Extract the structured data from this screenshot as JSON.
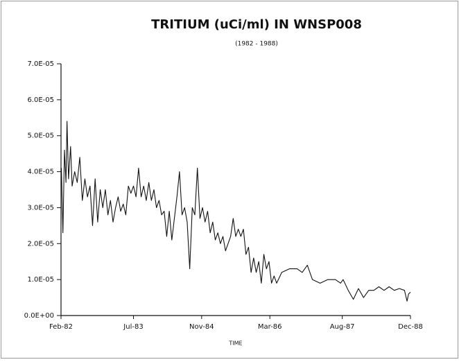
{
  "chart_data": {
    "type": "line",
    "title": "TRITIUM (uCi/ml) IN WNSP008",
    "subtitle": "(1982 - 1988)",
    "x_label": "TIME",
    "color": "#111111",
    "xlim": [
      1982.083,
      1988.917
    ],
    "xticks": [
      {
        "value": 1982.083,
        "label": "Feb-82"
      },
      {
        "value": 1983.5,
        "label": "Jul-83"
      },
      {
        "value": 1984.833,
        "label": "Nov-84"
      },
      {
        "value": 1986.167,
        "label": "Mar-86"
      },
      {
        "value": 1987.583,
        "label": "Aug-87"
      },
      {
        "value": 1988.917,
        "label": "Dec-88"
      }
    ],
    "ylim": [
      0,
      7e-05
    ],
    "yticks": [
      {
        "value": 0,
        "label": "0.0E+00"
      },
      {
        "value": 1e-05,
        "label": "1.0E-05"
      },
      {
        "value": 2e-05,
        "label": "2.0E-05"
      },
      {
        "value": 3e-05,
        "label": "3.0E-05"
      },
      {
        "value": 4e-05,
        "label": "4.0E-05"
      },
      {
        "value": 5e-05,
        "label": "5.0E-05"
      },
      {
        "value": 6e-05,
        "label": "6.0E-05"
      },
      {
        "value": 7e-05,
        "label": "7.0E-05"
      }
    ],
    "x": [
      1982.09,
      1982.12,
      1982.15,
      1982.18,
      1982.2,
      1982.23,
      1982.27,
      1982.3,
      1982.35,
      1982.4,
      1982.45,
      1982.5,
      1982.55,
      1982.6,
      1982.65,
      1982.7,
      1982.75,
      1982.8,
      1982.85,
      1982.9,
      1982.95,
      1983.0,
      1983.05,
      1983.1,
      1983.15,
      1983.2,
      1983.25,
      1983.3,
      1983.35,
      1983.4,
      1983.45,
      1983.5,
      1983.55,
      1983.6,
      1983.65,
      1983.7,
      1983.75,
      1983.8,
      1983.85,
      1983.9,
      1983.95,
      1984.0,
      1984.05,
      1984.1,
      1984.15,
      1984.2,
      1984.25,
      1984.3,
      1984.35,
      1984.4,
      1984.45,
      1984.5,
      1984.55,
      1984.6,
      1984.65,
      1984.7,
      1984.75,
      1984.8,
      1984.85,
      1984.9,
      1984.95,
      1985.0,
      1985.05,
      1985.1,
      1985.15,
      1985.2,
      1985.25,
      1985.3,
      1985.35,
      1985.4,
      1985.45,
      1985.5,
      1985.55,
      1985.6,
      1985.65,
      1985.7,
      1985.75,
      1985.8,
      1985.85,
      1985.9,
      1985.95,
      1986.0,
      1986.05,
      1986.1,
      1986.15,
      1986.2,
      1986.25,
      1986.3,
      1986.4,
      1986.55,
      1986.7,
      1986.8,
      1986.9,
      1987.0,
      1987.15,
      1987.3,
      1987.45,
      1987.55,
      1987.6,
      1987.7,
      1987.8,
      1987.9,
      1988.0,
      1988.1,
      1988.2,
      1988.3,
      1988.4,
      1988.5,
      1988.6,
      1988.7,
      1988.8,
      1988.85,
      1988.88,
      1988.917
    ],
    "values": [
      4.1e-05,
      2.3e-05,
      4.6e-05,
      3.7e-05,
      5.4e-05,
      3.8e-05,
      4.7e-05,
      3.6e-05,
      4e-05,
      3.7e-05,
      4.4e-05,
      3.2e-05,
      3.8e-05,
      3.3e-05,
      3.6e-05,
      2.5e-05,
      3.8e-05,
      2.6e-05,
      3.5e-05,
      3e-05,
      3.5e-05,
      2.8e-05,
      3.2e-05,
      2.6e-05,
      3e-05,
      3.3e-05,
      2.9e-05,
      3.1e-05,
      2.8e-05,
      3.6e-05,
      3.4e-05,
      3.6e-05,
      3.3e-05,
      4.1e-05,
      3.3e-05,
      3.6e-05,
      3.2e-05,
      3.7e-05,
      3.2e-05,
      3.5e-05,
      3e-05,
      3.2e-05,
      2.8e-05,
      2.9e-05,
      2.2e-05,
      2.9e-05,
      2.1e-05,
      2.7e-05,
      3.3e-05,
      4e-05,
      2.8e-05,
      3e-05,
      2.6e-05,
      1.3e-05,
      3e-05,
      2.8e-05,
      4.1e-05,
      2.7e-05,
      3e-05,
      2.6e-05,
      2.9e-05,
      2.3e-05,
      2.6e-05,
      2.1e-05,
      2.3e-05,
      2e-05,
      2.2e-05,
      1.8e-05,
      2e-05,
      2.2e-05,
      2.7e-05,
      2.2e-05,
      2.4e-05,
      2.2e-05,
      2.4e-05,
      1.7e-05,
      1.9e-05,
      1.2e-05,
      1.6e-05,
      1.2e-05,
      1.5e-05,
      9e-06,
      1.7e-05,
      1.3e-05,
      1.5e-05,
      9e-06,
      1.1e-05,
      9e-06,
      1.2e-05,
      1.3e-05,
      1.3e-05,
      1.2e-05,
      1.4e-05,
      1e-05,
      9e-06,
      1e-05,
      1e-05,
      9e-06,
      1e-05,
      7e-06,
      4.5e-06,
      7.5e-06,
      5e-06,
      7e-06,
      7e-06,
      8e-06,
      7e-06,
      8e-06,
      7e-06,
      7.5e-06,
      7e-06,
      4e-06,
      6e-06,
      6.5e-06
    ]
  }
}
